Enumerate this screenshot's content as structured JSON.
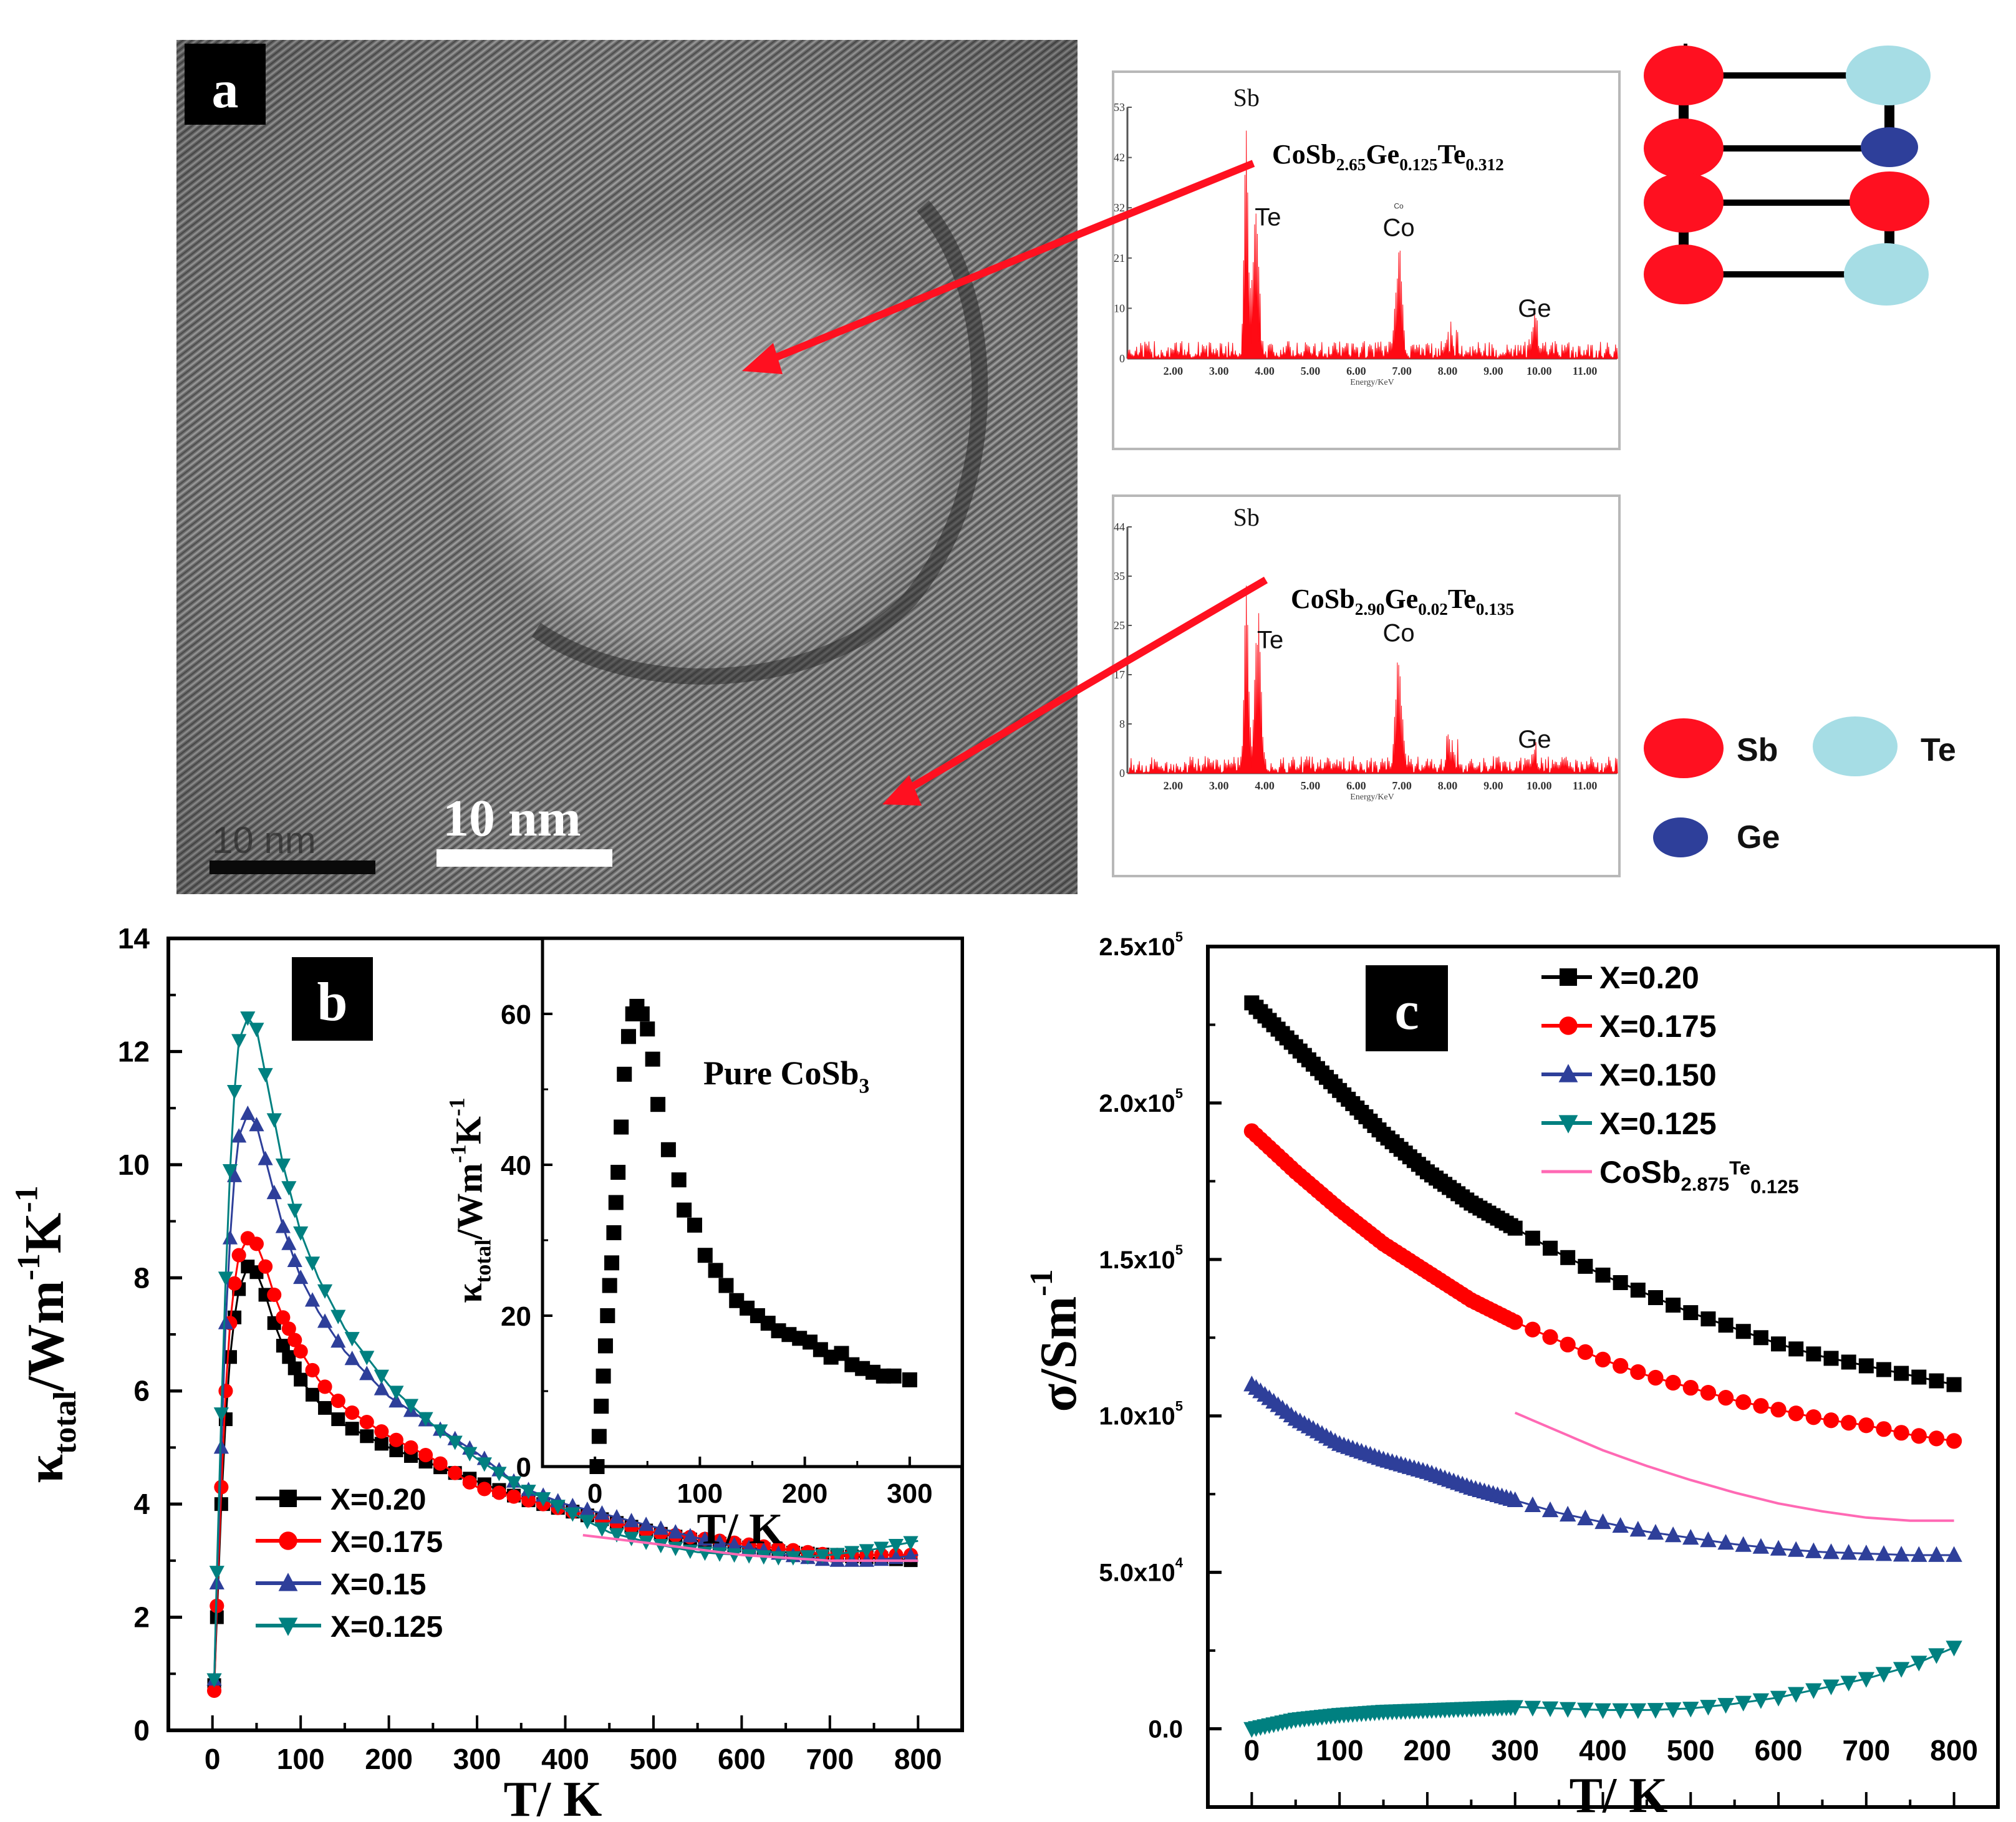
{
  "panel_a": {
    "label": "a",
    "scale_bar_old": "10 nm",
    "scale_bar_new": "10 nm",
    "eds_spectra": [
      {
        "formula": {
          "base": "CoSb",
          "sb_sub": "2.65",
          "ge": "Ge",
          "ge_sub": "0.125",
          "te": "Te",
          "te_sub": "0.312"
        },
        "y_ticks": [
          "53",
          "42",
          "32",
          "21",
          "10",
          "0"
        ],
        "x_ticks": [
          "2.00",
          "3.00",
          "4.00",
          "5.00",
          "6.00",
          "7.00",
          "8.00",
          "9.00",
          "10.00",
          "11.00"
        ],
        "xlabel": "Energy/KeV",
        "peaks": [
          {
            "label": "Sb",
            "energy": 3.6,
            "height": 49
          },
          {
            "label": "Te",
            "energy": 3.8,
            "height": 36
          },
          {
            "label": "Co",
            "energy": 6.93,
            "height": 24
          },
          {
            "label": "Ge",
            "energy": 9.9,
            "height": 7
          }
        ],
        "small_label": "Co"
      },
      {
        "formula": {
          "base": "CoSb",
          "sb_sub": "2.90",
          "ge": "Ge",
          "ge_sub": "0.02",
          "te": "Te",
          "te_sub": "0.135"
        },
        "y_ticks": [
          "44",
          "35",
          "25",
          "17",
          "8",
          "0"
        ],
        "x_ticks": [
          "2.00",
          "3.00",
          "4.00",
          "5.00",
          "6.00",
          "7.00",
          "8.00",
          "9.00",
          "10.00",
          "11.00"
        ],
        "xlabel": "Energy/KeV",
        "peaks": [
          {
            "label": "Sb",
            "energy": 3.6,
            "height": 41
          },
          {
            "label": "Te",
            "energy": 3.85,
            "height": 29
          },
          {
            "label": "Co",
            "energy": 6.93,
            "height": 22
          },
          {
            "label": "Ge",
            "energy": 9.9,
            "height": 3
          }
        ]
      }
    ],
    "structure": {
      "legend": [
        {
          "label": "Sb",
          "color": "#ff1020"
        },
        {
          "label": "Te",
          "color": "#a6dde5"
        },
        {
          "label": "Ge",
          "color": "#2e3f9a"
        }
      ],
      "top_cell": [
        "Sb",
        "Te",
        "Sb",
        "Ge"
      ],
      "bottom_cell": [
        "Sb",
        "Sb",
        "Sb",
        "Te"
      ]
    }
  },
  "chart_data": [
    {
      "id": "b",
      "type": "scatter",
      "panel_label": "b",
      "title": "",
      "xlabel": "T/ K",
      "ylabel": "κtotal/Wm-1K-1",
      "xlim": [
        -50,
        850
      ],
      "ylim": [
        0,
        14
      ],
      "x_ticks": [
        0,
        100,
        200,
        300,
        400,
        500,
        600,
        700,
        800
      ],
      "y_ticks": [
        0,
        2,
        4,
        6,
        8,
        10,
        12,
        14
      ],
      "legend_position": "lower-left",
      "series": [
        {
          "name": "X=0.20",
          "color": "#000000",
          "marker": "square",
          "x": [
            2,
            5,
            10,
            15,
            20,
            25,
            30,
            40,
            50,
            60,
            70,
            80,
            100,
            120,
            150,
            200,
            250,
            300,
            350,
            400,
            450,
            500,
            550,
            600,
            650,
            700,
            750,
            800
          ],
          "y": [
            0.8,
            2.0,
            4.0,
            5.5,
            6.6,
            7.3,
            7.8,
            8.2,
            8.1,
            7.7,
            7.2,
            6.8,
            6.2,
            5.8,
            5.4,
            5.0,
            4.7,
            4.4,
            4.1,
            3.9,
            3.7,
            3.5,
            3.35,
            3.25,
            3.15,
            3.1,
            3.05,
            3.0
          ]
        },
        {
          "name": "X=0.175",
          "color": "#ff0000",
          "marker": "circle",
          "x": [
            2,
            5,
            10,
            15,
            20,
            25,
            30,
            40,
            50,
            60,
            70,
            80,
            100,
            120,
            150,
            200,
            250,
            300,
            350,
            400,
            450,
            500,
            550,
            600,
            650,
            700,
            750,
            800
          ],
          "y": [
            0.7,
            2.2,
            4.3,
            6.0,
            7.2,
            7.9,
            8.4,
            8.7,
            8.6,
            8.2,
            7.7,
            7.3,
            6.7,
            6.2,
            5.7,
            5.2,
            4.8,
            4.3,
            4.1,
            3.9,
            3.7,
            3.5,
            3.4,
            3.3,
            3.2,
            3.1,
            3.1,
            3.1
          ]
        },
        {
          "name": "X=0.15",
          "color": "#2e3f9a",
          "marker": "triangle-up",
          "x": [
            2,
            5,
            10,
            15,
            20,
            25,
            30,
            40,
            50,
            60,
            70,
            80,
            100,
            120,
            150,
            200,
            250,
            300,
            350,
            400,
            450,
            500,
            550,
            600,
            650,
            700,
            750,
            800
          ],
          "y": [
            0.9,
            2.6,
            5.0,
            7.2,
            8.7,
            9.8,
            10.5,
            10.9,
            10.7,
            10.1,
            9.5,
            8.9,
            8.0,
            7.4,
            6.7,
            5.9,
            5.4,
            4.9,
            4.3,
            4.0,
            3.8,
            3.6,
            3.4,
            3.25,
            3.1,
            3.0,
            3.0,
            3.1
          ]
        },
        {
          "name": "X=0.125",
          "color": "#008080",
          "marker": "triangle-down",
          "x": [
            2,
            5,
            10,
            15,
            20,
            25,
            30,
            40,
            50,
            60,
            70,
            80,
            100,
            120,
            150,
            200,
            250,
            300,
            350,
            400,
            450,
            500,
            550,
            600,
            650,
            700,
            750,
            800
          ],
          "y": [
            0.9,
            2.8,
            5.6,
            8.0,
            9.9,
            11.3,
            12.2,
            12.6,
            12.4,
            11.6,
            10.8,
            10.0,
            8.8,
            8.0,
            7.1,
            6.1,
            5.4,
            4.8,
            4.3,
            3.9,
            3.5,
            3.3,
            3.15,
            3.1,
            3.05,
            3.1,
            3.2,
            3.35
          ]
        },
        {
          "name": "CoSb2.875Te0.125",
          "color": "#ff69b4",
          "marker": "none",
          "x": [
            420,
            500,
            600,
            700,
            800
          ],
          "y": [
            3.45,
            3.3,
            3.1,
            3.0,
            3.0
          ]
        }
      ],
      "inset": {
        "type": "scatter",
        "annotation": "Pure CoSb",
        "annotation_sub": "3",
        "xlabel": "T/ K",
        "ylabel": "κtotal/Wm-1K-1",
        "xlim": [
          -50,
          350
        ],
        "ylim": [
          0,
          70
        ],
        "x_ticks": [
          0,
          100,
          200,
          300
        ],
        "y_ticks": [
          0,
          20,
          40,
          60
        ],
        "series": [
          {
            "name": "Pure CoSb3",
            "color": "#000000",
            "marker": "square",
            "x": [
              2,
              4,
              6,
              8,
              10,
              12,
              14,
              16,
              18,
              20,
              22,
              25,
              28,
              32,
              36,
              40,
              45,
              50,
              55,
              60,
              70,
              80,
              85,
              95,
              105,
              115,
              125,
              135,
              145,
              155,
              165,
              175,
              185,
              195,
              205,
              215,
              225,
              235,
              245,
              255,
              265,
              275,
              285,
              300
            ],
            "y": [
              0,
              4,
              8,
              12,
              16,
              20,
              24,
              27,
              31,
              35,
              39,
              45,
              52,
              57,
              60,
              61,
              60,
              58,
              54,
              48,
              42,
              38,
              34,
              32,
              28,
              26,
              24,
              22,
              21,
              20,
              19,
              18,
              17.5,
              17,
              16.5,
              15.5,
              14.5,
              15,
              13.5,
              13,
              12.5,
              12,
              12,
              11.5
            ]
          }
        ]
      }
    },
    {
      "id": "c",
      "type": "scatter",
      "panel_label": "c",
      "title": "",
      "xlabel": "T/ K",
      "ylabel": "σ/Sm-1",
      "xlim": [
        -50,
        850
      ],
      "ylim": [
        -25000,
        250000
      ],
      "x_ticks": [
        0,
        100,
        200,
        300,
        400,
        500,
        600,
        700,
        800
      ],
      "y_tick_values": [
        0,
        50000,
        100000,
        150000,
        200000,
        250000
      ],
      "y_tick_labels": [
        {
          "mant": "0.0",
          "exp": ""
        },
        {
          "mant": "5.0x10",
          "exp": "4"
        },
        {
          "mant": "1.0x10",
          "exp": "5"
        },
        {
          "mant": "1.5x10",
          "exp": "5"
        },
        {
          "mant": "2.0x10",
          "exp": "5"
        },
        {
          "mant": "2.5x10",
          "exp": "5"
        }
      ],
      "legend_position": "top-right",
      "series": [
        {
          "name": "X=0.20",
          "color": "#000000",
          "marker": "square",
          "x": [
            0,
            50,
            100,
            150,
            200,
            250,
            300,
            350,
            400,
            450,
            500,
            550,
            600,
            650,
            700,
            750,
            800
          ],
          "y": [
            232000,
            218000,
            204000,
            190000,
            178000,
            168000,
            160000,
            152000,
            145000,
            139000,
            133000,
            128000,
            123000,
            119000,
            116000,
            113000,
            110000
          ]
        },
        {
          "name": "X=0.175",
          "color": "#ff0000",
          "marker": "circle",
          "x": [
            0,
            50,
            100,
            150,
            200,
            250,
            300,
            350,
            400,
            450,
            500,
            550,
            600,
            650,
            700,
            750,
            800
          ],
          "y": [
            191000,
            178000,
            166000,
            155000,
            146000,
            137000,
            130000,
            124000,
            118000,
            113000,
            109000,
            105000,
            102000,
            99000,
            97000,
            94000,
            92000
          ]
        },
        {
          "name": "X=0.150",
          "color": "#2e3f9a",
          "marker": "triangle-up",
          "x": [
            0,
            50,
            100,
            150,
            200,
            250,
            300,
            350,
            400,
            450,
            500,
            550,
            600,
            650,
            700,
            750,
            800
          ],
          "y": [
            110000,
            99000,
            91000,
            86000,
            82000,
            77000,
            73000,
            69000,
            66000,
            63000,
            61000,
            59000,
            57500,
            56500,
            56000,
            55500,
            55500
          ]
        },
        {
          "name": "X=0.125",
          "color": "#008080",
          "marker": "triangle-down",
          "x": [
            0,
            50,
            100,
            150,
            200,
            250,
            300,
            350,
            400,
            450,
            500,
            550,
            600,
            650,
            700,
            750,
            800
          ],
          "y": [
            0,
            3000,
            4500,
            5500,
            6000,
            6500,
            7000,
            6500,
            6000,
            6000,
            6500,
            8000,
            10000,
            13000,
            16000,
            20000,
            26000
          ]
        },
        {
          "name": "CoSb2.875Te0.125",
          "color": "#ff69b4",
          "marker": "none",
          "x": [
            300,
            350,
            400,
            450,
            500,
            550,
            600,
            650,
            700,
            750,
            800
          ],
          "y": [
            101000,
            95000,
            89000,
            84000,
            79500,
            75500,
            72000,
            69500,
            67500,
            66500,
            66500
          ]
        }
      ],
      "legend_labels": [
        {
          "text": "X=0.20"
        },
        {
          "text": "X=0.175"
        },
        {
          "text": "X=0.150"
        },
        {
          "text": "X=0.125"
        },
        {
          "text": "CoSb",
          "sub1": "2.875",
          "sup": "Te",
          "sub2": "0.125"
        }
      ]
    }
  ]
}
